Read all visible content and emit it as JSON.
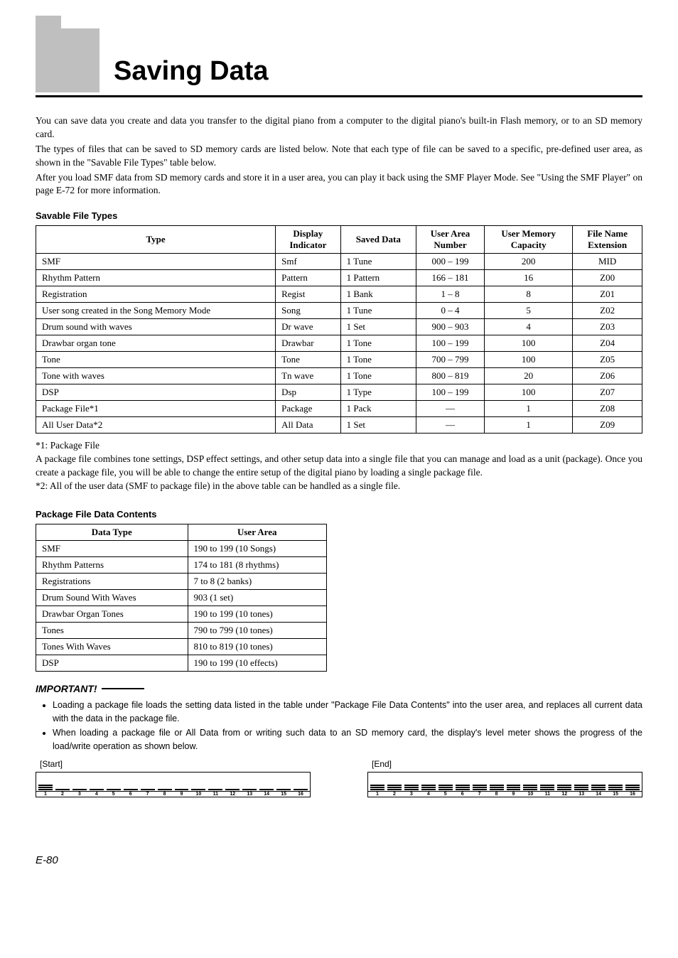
{
  "title": "Saving Data",
  "intro": {
    "p1": "You can save data you create and data you transfer to the digital piano from a computer to the digital piano's built-in Flash memory, or to an SD memory card.",
    "p2": "The types of files that can be saved to SD memory cards are listed below. Note that each type of file can be saved to a specific, pre-defined user area, as shown in the \"Savable File Types\" table below.",
    "p3": "After you load SMF data from SD memory cards and store it in a user area, you can play it back using the SMF Player Mode. See \"Using the SMF Player\" on page E-72 for more information."
  },
  "table1": {
    "title": "Savable File Types",
    "headers": [
      "Type",
      "Display Indicator",
      "Saved Data",
      "User Area Number",
      "User Memory Capacity",
      "File Name Extension"
    ],
    "rows": [
      [
        "SMF",
        "Smf",
        "1 Tune",
        "000 – 199",
        "200",
        "MID"
      ],
      [
        "Rhythm Pattern",
        "Pattern",
        "1 Pattern",
        "166 – 181",
        "16",
        "Z00"
      ],
      [
        "Registration",
        "Regist",
        "1 Bank",
        "1 – 8",
        "8",
        "Z01"
      ],
      [
        "User song created in the Song Memory Mode",
        "Song",
        "1 Tune",
        "0 – 4",
        "5",
        "Z02"
      ],
      [
        "Drum sound with waves",
        "Dr wave",
        "1 Set",
        "900 – 903",
        "4",
        "Z03"
      ],
      [
        "Drawbar organ tone",
        "Drawbar",
        "1 Tone",
        "100 – 199",
        "100",
        "Z04"
      ],
      [
        "Tone",
        "Tone",
        "1 Tone",
        "700 – 799",
        "100",
        "Z05"
      ],
      [
        "Tone with waves",
        "Tn wave",
        "1 Tone",
        "800 – 819",
        "20",
        "Z06"
      ],
      [
        "DSP",
        "Dsp",
        "1 Type",
        "100 – 199",
        "100",
        "Z07"
      ],
      [
        "Package File*1",
        "Package",
        "1 Pack",
        "—",
        "1",
        "Z08"
      ],
      [
        "All User Data*2",
        "All Data",
        "1 Set",
        "—",
        "1",
        "Z09"
      ]
    ]
  },
  "notes": {
    "n1": "*1: Package File",
    "n2": "A package file combines tone settings, DSP effect settings, and other setup data into a single file that you can manage and load as a unit (package). Once you create a package file, you will be able to change the entire setup of the digital piano by loading a single package file.",
    "n3": "*2: All of the user data (SMF to package file) in the above table can be handled as a single file."
  },
  "table2": {
    "title": "Package File Data Contents",
    "headers": [
      "Data Type",
      "User Area"
    ],
    "rows": [
      [
        "SMF",
        "190 to 199 (10 Songs)"
      ],
      [
        "Rhythm Patterns",
        "174 to 181 (8 rhythms)"
      ],
      [
        "Registrations",
        "7 to 8 (2 banks)"
      ],
      [
        "Drum Sound With Waves",
        "903 (1 set)"
      ],
      [
        "Drawbar Organ Tones",
        "190 to 199 (10 tones)"
      ],
      [
        "Tones",
        "790 to 799 (10 tones)"
      ],
      [
        "Tones With Waves",
        "810 to 819 (10 tones)"
      ],
      [
        "DSP",
        "190 to 199 (10 effects)"
      ]
    ]
  },
  "important": {
    "head": "IMPORTANT!",
    "i1": "Loading a package file loads the setting data listed in the table under \"Package File Data Contents\" into the user area, and replaces all current data with the data in the package file.",
    "i2": "When loading a package file or All Data from or writing such data to an SD memory card, the display's level meter shows the progress of the load/write operation as shown below."
  },
  "meters": {
    "start": "[Start]",
    "end": "[End]",
    "numbers": [
      "1",
      "2",
      "3",
      "4",
      "5",
      "6",
      "7",
      "8",
      "9",
      "10",
      "11",
      "12",
      "13",
      "14",
      "15",
      "16"
    ]
  },
  "page_num": "E-80"
}
